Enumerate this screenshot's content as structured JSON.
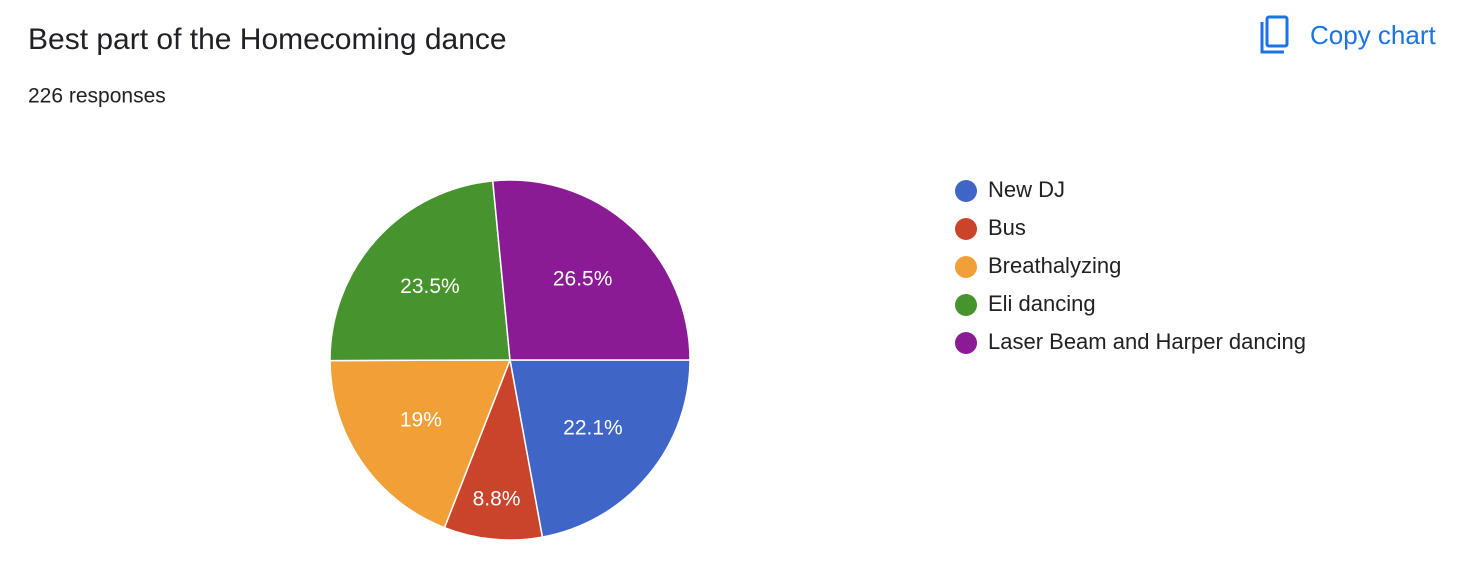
{
  "chart_data": {
    "type": "pie",
    "title": "Best part of the Homecoming dance",
    "subtitle": "226 responses",
    "categories": [
      "New DJ",
      "Bus",
      "Breathalyzing",
      "Eli dancing",
      "Laser Beam and Harper dancing"
    ],
    "values": [
      22.1,
      8.8,
      19,
      23.5,
      26.5
    ],
    "value_labels": [
      "22.1%",
      "8.8%",
      "19%",
      "23.5%",
      "26.5%"
    ],
    "colors": [
      "#3f66c6",
      "#c9442a",
      "#f0a037",
      "#47942f",
      "#8b1a95"
    ],
    "legend": "right"
  },
  "button": {
    "label": "Copy chart"
  }
}
